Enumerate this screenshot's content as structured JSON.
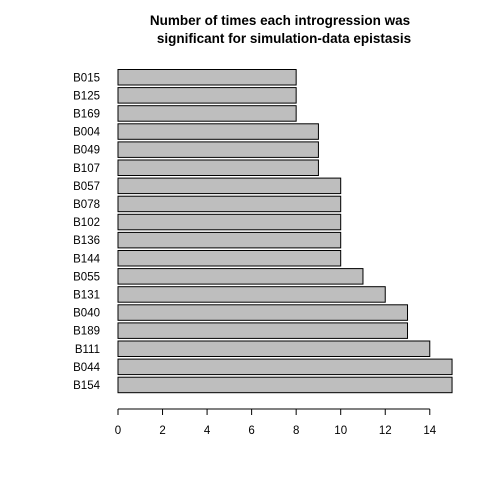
{
  "chart_data": {
    "type": "bar",
    "orientation": "horizontal",
    "title_lines": [
      "Number of times each introgression was",
      "significant for simulation-data epistasis"
    ],
    "xlabel": "",
    "ylabel": "",
    "categories": [
      "B015",
      "B125",
      "B169",
      "B004",
      "B049",
      "B107",
      "B057",
      "B078",
      "B102",
      "B136",
      "B144",
      "B055",
      "B131",
      "B040",
      "B189",
      "B111",
      "B044",
      "B154"
    ],
    "values": [
      8,
      8,
      8,
      9,
      9,
      9,
      10,
      10,
      10,
      10,
      10,
      11,
      12,
      13,
      13,
      14,
      15,
      15
    ],
    "xticks": [
      0,
      2,
      4,
      6,
      8,
      10,
      12,
      14
    ],
    "xlim": [
      0,
      15
    ],
    "bar_color": "#bebebe",
    "edge_color": "#000000",
    "grid": false,
    "legend": false
  }
}
